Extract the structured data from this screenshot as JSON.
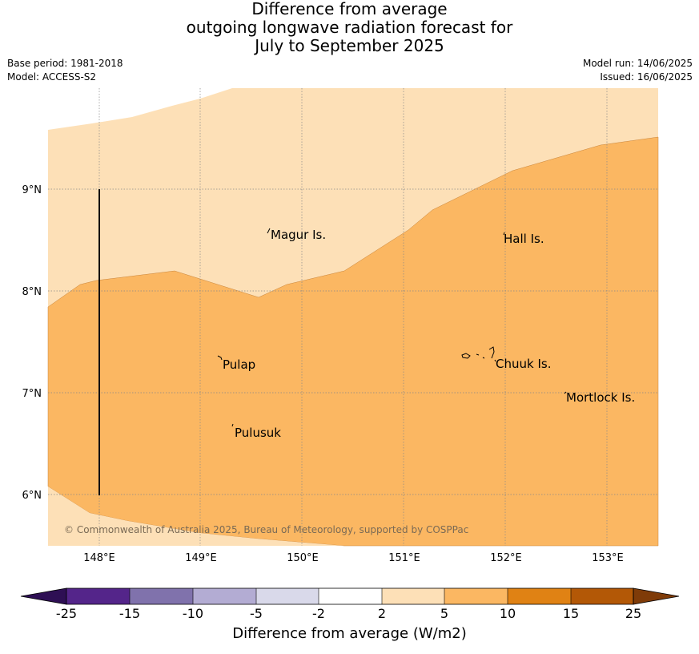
{
  "title": {
    "line1": "Difference from average",
    "line2": "outgoing longwave radiation forecast for",
    "line3": "July to September 2025"
  },
  "meta": {
    "base_period": "Base period: 1981-2018",
    "model": "Model: ACCESS-S2",
    "model_run": "Model run: 14/06/2025",
    "issued": "Issued: 16/06/2025"
  },
  "map": {
    "lon_range": [
      147.5,
      153.5
    ],
    "lat_range": [
      5.5,
      10.0
    ],
    "lon_ticks": [
      "148°E",
      "149°E",
      "150°E",
      "151°E",
      "152°E",
      "153°E"
    ],
    "lat_ticks": [
      "9°N",
      "8°N",
      "7°N",
      "6°N"
    ],
    "islands": [
      {
        "name": "Magur Is."
      },
      {
        "name": "Hall Is."
      },
      {
        "name": "Pulap"
      },
      {
        "name": "Chuuk Is."
      },
      {
        "name": "Mortlock Is."
      },
      {
        "name": "Pulusuk"
      }
    ],
    "copyright": "© Commonwealth of Australia 2025, Bureau of Meteorology, supported by COSPPac",
    "colors": {
      "light_orange": "#fde0b7",
      "orange": "#fbb762"
    }
  },
  "colorbar": {
    "ticks": [
      "-25",
      "-15",
      "-10",
      "-5",
      "-2",
      "2",
      "5",
      "10",
      "15",
      "25"
    ],
    "colors": [
      "#2e0f54",
      "#54258a",
      "#8072ac",
      "#b3acd3",
      "#d9d9ea",
      "#ffffff",
      "#fde0b7",
      "#fbb762",
      "#e08214",
      "#b35806",
      "#7f3b08"
    ],
    "label": "Difference from average (W/m2)"
  }
}
